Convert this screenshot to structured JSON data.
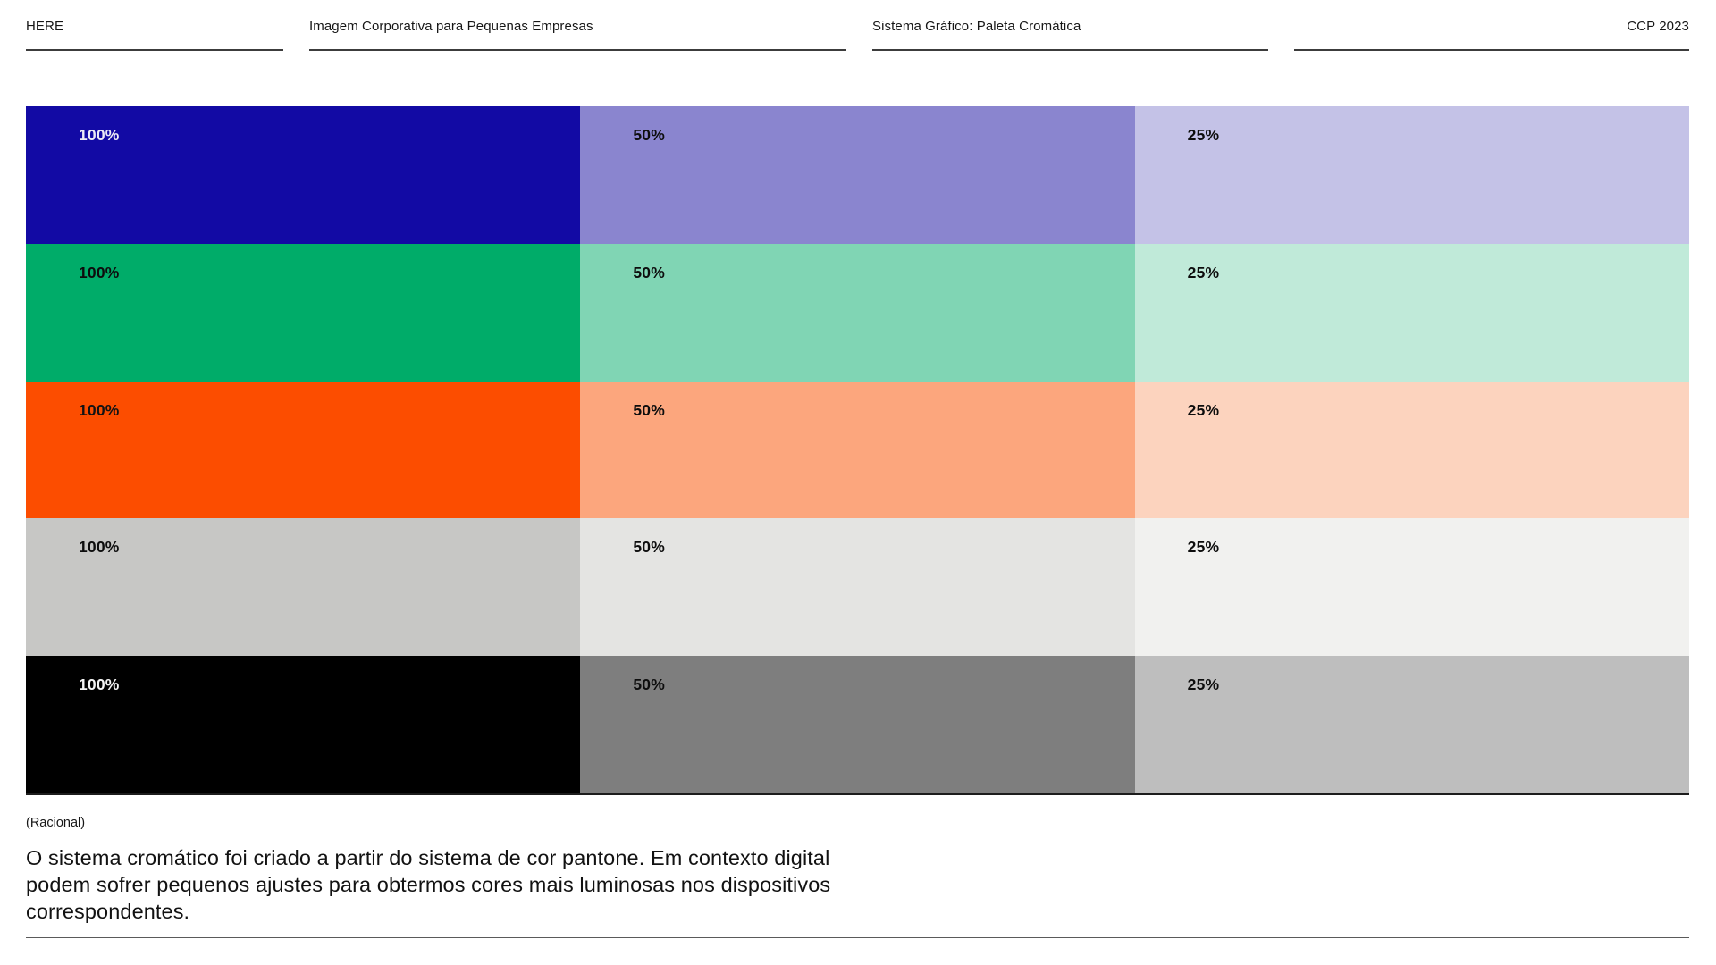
{
  "header": {
    "columns": [
      {
        "label": "HERE"
      },
      {
        "label": "Imagem Corporativa para Pequenas Empresas"
      },
      {
        "label": "Sistema Gráfico: Paleta Cromática"
      },
      {
        "label": "CCP 2023"
      }
    ]
  },
  "palette": {
    "tint_labels": [
      "100%",
      "50%",
      "25%"
    ],
    "rows": [
      {
        "name": "blue",
        "tints": [
          {
            "label": "100%",
            "color": "#120AA4",
            "text_color": "#ECEBF6"
          },
          {
            "label": "50%",
            "color": "#8A85CF",
            "text_color": "#0D0D0D"
          },
          {
            "label": "25%",
            "color": "#C4C2E7",
            "text_color": "#0D0D0D"
          }
        ]
      },
      {
        "name": "green",
        "tints": [
          {
            "label": "100%",
            "color": "#00AC69",
            "text_color": "#0D0D0D"
          },
          {
            "label": "50%",
            "color": "#80D5B4",
            "text_color": "#0D0D0D"
          },
          {
            "label": "25%",
            "color": "#C0EAD9",
            "text_color": "#0D0D0D"
          }
        ]
      },
      {
        "name": "orange",
        "tints": [
          {
            "label": "100%",
            "color": "#FC4D00",
            "text_color": "#131313"
          },
          {
            "label": "50%",
            "color": "#FCA67D",
            "text_color": "#0D0D0D"
          },
          {
            "label": "25%",
            "color": "#FCD3BE",
            "text_color": "#0D0D0D"
          }
        ]
      },
      {
        "name": "cool-gray",
        "tints": [
          {
            "label": "100%",
            "color": "#C7C7C5",
            "text_color": "#0D0D0D"
          },
          {
            "label": "50%",
            "color": "#E4E4E2",
            "text_color": "#0D0D0D"
          },
          {
            "label": "25%",
            "color": "#F1F1EF",
            "text_color": "#0D0D0D"
          }
        ]
      },
      {
        "name": "black",
        "tints": [
          {
            "label": "100%",
            "color": "#000000",
            "text_color": "#F4F4F4"
          },
          {
            "label": "50%",
            "color": "#7E7E7E",
            "text_color": "#0D0D0D"
          },
          {
            "label": "25%",
            "color": "#BEBEBE",
            "text_color": "#0D0D0D"
          }
        ]
      }
    ]
  },
  "rational": {
    "heading": "(Racional)",
    "body": "O sistema cromático foi criado a partir do sistema de cor pantone. Em contexto digital podem sofrer pequenos ajustes para obtermos cores mais luminosas nos dispositivos correspondentes."
  }
}
